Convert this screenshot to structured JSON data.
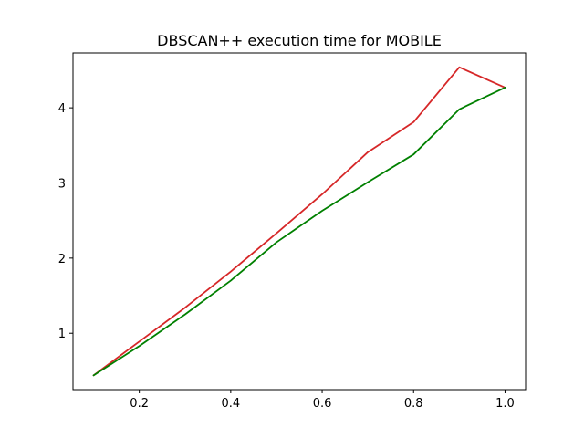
{
  "chart_data": {
    "type": "line",
    "title": "DBSCAN++  execution time for MOBILE",
    "xlabel": "",
    "ylabel": "",
    "xlim": [
      0.055,
      1.045
    ],
    "ylim": [
      0.25,
      4.73
    ],
    "xticks": [
      0.2,
      0.4,
      0.6,
      0.8,
      1.0
    ],
    "xtick_labels": [
      "0.2",
      "0.4",
      "0.6",
      "0.8",
      "1.0"
    ],
    "yticks": [
      1,
      2,
      3,
      4
    ],
    "ytick_labels": [
      "1",
      "2",
      "3",
      "4"
    ],
    "grid": false,
    "legend": "none",
    "x": [
      0.1,
      0.2,
      0.3,
      0.4,
      0.5,
      0.6,
      0.7,
      0.8,
      0.9,
      1.0
    ],
    "series": [
      {
        "color": "#d62728",
        "values": [
          0.44,
          0.89,
          1.34,
          1.82,
          2.33,
          2.85,
          3.41,
          3.81,
          4.54,
          4.27
        ]
      },
      {
        "color": "#008000",
        "values": [
          0.44,
          0.83,
          1.25,
          1.7,
          2.21,
          2.63,
          3.01,
          3.38,
          3.98,
          4.27
        ]
      }
    ]
  }
}
